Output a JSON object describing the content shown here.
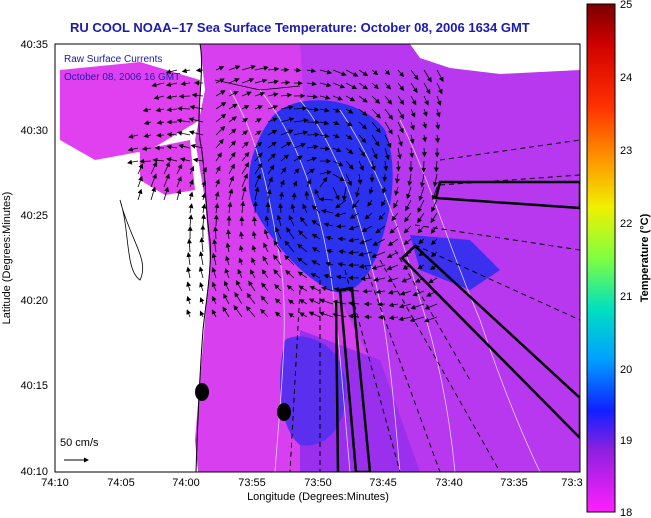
{
  "title": "RU COOL  NOAA–17  Sea Surface Temperature:  October 08, 2006 1634 GMT",
  "title_color": "#1a1ab0",
  "overlay": {
    "line1": "Raw Surface Currents",
    "line2": "October 08, 2006 16 GMT"
  },
  "scale_arrow_label": "50 cm/s",
  "y_axis": {
    "label": "Latitude (Degrees:Minutes)",
    "ticks": [
      "40:35",
      "40:30",
      "40:25",
      "40:20",
      "40:15",
      "40:10"
    ]
  },
  "x_axis": {
    "label": "Longitude (Degrees:Minutes)",
    "ticks": [
      "74:10",
      "74:05",
      "74:00",
      "73:55",
      "73:50",
      "73:45",
      "73:40",
      "73:35",
      "73:3"
    ]
  },
  "colorbar": {
    "label": "Temperature (°C)",
    "ticks": [
      "25",
      "24",
      "23",
      "22",
      "21",
      "20",
      "19",
      "18"
    ],
    "min": 18,
    "max": 25
  },
  "colors": {
    "sst_magenta": "#e040f0",
    "sst_violet": "#a030e8",
    "sst_blue": "#2030f0",
    "land": "#ffffff"
  }
}
